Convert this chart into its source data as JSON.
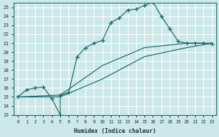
{
  "xlabel": "Humidex (Indice chaleur)",
  "bg_color": "#cce8e8",
  "grid_color": "#ffffff",
  "line_color": "#1a6b6b",
  "xlim": [
    -0.5,
    23.5
  ],
  "ylim": [
    13,
    25.5
  ],
  "xticks": [
    0,
    1,
    2,
    3,
    4,
    5,
    6,
    7,
    8,
    9,
    10,
    11,
    12,
    13,
    14,
    15,
    16,
    17,
    18,
    19,
    20,
    21,
    22,
    23
  ],
  "yticks": [
    13,
    14,
    15,
    16,
    17,
    18,
    19,
    20,
    21,
    22,
    23,
    24,
    25
  ],
  "line1_x": [
    0,
    1,
    2,
    3,
    4,
    5,
    5,
    6,
    7,
    8,
    9,
    10,
    11,
    12,
    13,
    14,
    15,
    16,
    17,
    18,
    19,
    20,
    21,
    22,
    23
  ],
  "line1_y": [
    15.0,
    15.8,
    16.0,
    16.1,
    14.8,
    13.0,
    15.2,
    15.5,
    19.5,
    20.5,
    21.0,
    21.3,
    23.3,
    23.8,
    24.7,
    24.8,
    25.2,
    25.6,
    24.0,
    22.6,
    21.2,
    21.0,
    21.0,
    21.0,
    20.9
  ],
  "line2_x": [
    0,
    5,
    10,
    15,
    20,
    23
  ],
  "line2_y": [
    15.0,
    15.2,
    18.5,
    20.5,
    21.0,
    21.0
  ],
  "line3_x": [
    0,
    5,
    10,
    15,
    20,
    23
  ],
  "line3_y": [
    15.0,
    15.0,
    17.0,
    19.5,
    20.5,
    21.0
  ]
}
